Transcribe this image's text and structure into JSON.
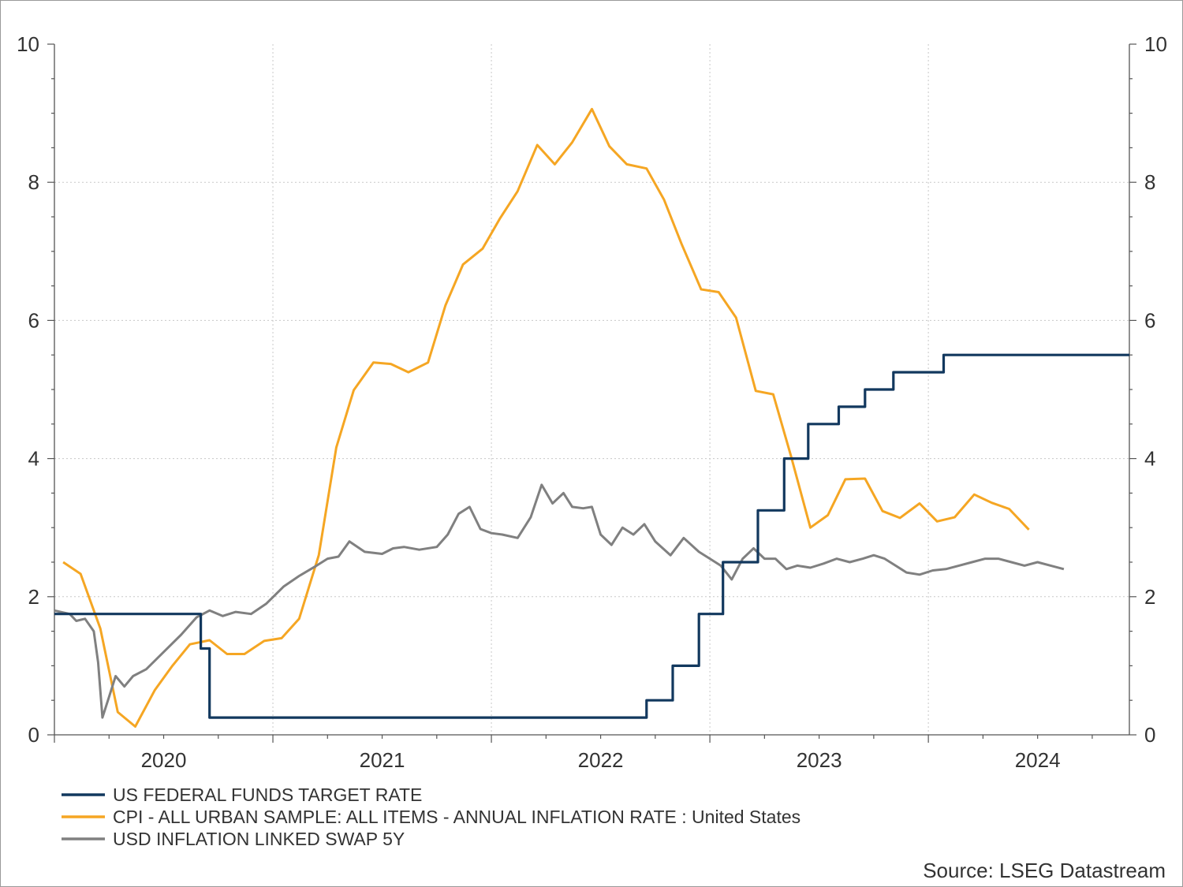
{
  "chart_data": {
    "type": "line",
    "title": "",
    "xlabel": "",
    "ylabel": "",
    "xlim": [
      2019.5,
      2024.42
    ],
    "ylim": [
      0,
      10
    ],
    "y_ticks": [
      0,
      2,
      4,
      6,
      8,
      10
    ],
    "y2_ticks": [
      0,
      2,
      4,
      6,
      8,
      10
    ],
    "x_year_labels": [
      "2020",
      "2021",
      "2022",
      "2023",
      "2024"
    ],
    "x_year_positions": [
      2020.0,
      2021.0,
      2022.0,
      2023.0,
      2024.0
    ],
    "grid": true,
    "legend_placement": "bottom-left",
    "source": "Source: LSEG Datastream",
    "series": [
      {
        "name": "US FEDERAL FUNDS TARGET RATE",
        "color": "#12385e",
        "step": true,
        "points": [
          [
            2019.5,
            1.75
          ],
          [
            2020.17,
            1.25
          ],
          [
            2020.21,
            0.25
          ],
          [
            2022.21,
            0.5
          ],
          [
            2022.33,
            1.0
          ],
          [
            2022.45,
            1.75
          ],
          [
            2022.56,
            2.5
          ],
          [
            2022.72,
            3.25
          ],
          [
            2022.84,
            4.0
          ],
          [
            2022.95,
            4.5
          ],
          [
            2023.09,
            4.75
          ],
          [
            2023.21,
            5.0
          ],
          [
            2023.34,
            5.25
          ],
          [
            2023.57,
            5.5
          ],
          [
            2024.42,
            5.5
          ]
        ]
      },
      {
        "name": "CPI - ALL URBAN SAMPLE: ALL ITEMS - ANNUAL INFLATION RATE : United States",
        "color": "#f5a623",
        "step": false,
        "points": [
          [
            2019.54,
            2.5
          ],
          [
            2019.62,
            2.33
          ],
          [
            2019.71,
            1.54
          ],
          [
            2019.79,
            0.33
          ],
          [
            2019.87,
            0.12
          ],
          [
            2019.96,
            0.65
          ],
          [
            2020.04,
            1.0
          ],
          [
            2020.12,
            1.31
          ],
          [
            2020.21,
            1.37
          ],
          [
            2020.29,
            1.17
          ],
          [
            2020.37,
            1.17
          ],
          [
            2020.46,
            1.36
          ],
          [
            2020.54,
            1.4
          ],
          [
            2020.62,
            1.68
          ],
          [
            2020.71,
            2.6
          ],
          [
            2020.79,
            4.16
          ],
          [
            2020.87,
            4.99
          ],
          [
            2020.96,
            5.39
          ],
          [
            2021.04,
            5.37
          ],
          [
            2021.12,
            5.25
          ],
          [
            2021.21,
            5.39
          ],
          [
            2021.29,
            6.22
          ],
          [
            2021.37,
            6.81
          ],
          [
            2021.46,
            7.04
          ],
          [
            2021.54,
            7.48
          ],
          [
            2021.62,
            7.87
          ],
          [
            2021.71,
            8.54
          ],
          [
            2021.79,
            8.26
          ],
          [
            2021.87,
            8.58
          ],
          [
            2021.96,
            9.06
          ],
          [
            2022.04,
            8.52
          ],
          [
            2022.12,
            8.26
          ],
          [
            2022.21,
            8.2
          ],
          [
            2022.29,
            7.75
          ],
          [
            2022.37,
            7.11
          ],
          [
            2022.46,
            6.45
          ],
          [
            2022.54,
            6.41
          ],
          [
            2022.62,
            6.04
          ],
          [
            2022.71,
            4.98
          ],
          [
            2022.79,
            4.93
          ],
          [
            2022.87,
            4.05
          ],
          [
            2022.96,
            3.0
          ],
          [
            2023.04,
            3.18
          ],
          [
            2023.12,
            3.7
          ],
          [
            2023.21,
            3.71
          ],
          [
            2023.29,
            3.24
          ],
          [
            2023.37,
            3.14
          ],
          [
            2023.46,
            3.35
          ],
          [
            2023.54,
            3.09
          ],
          [
            2023.62,
            3.15
          ],
          [
            2023.71,
            3.48
          ],
          [
            2023.79,
            3.36
          ],
          [
            2023.87,
            3.27
          ],
          [
            2023.96,
            2.97
          ]
        ]
      },
      {
        "name": "USD INFLATION LINKED SWAP 5Y",
        "color": "#808080",
        "step": false,
        "points": [
          [
            2019.5,
            1.8
          ],
          [
            2019.57,
            1.75
          ],
          [
            2019.6,
            1.65
          ],
          [
            2019.64,
            1.68
          ],
          [
            2019.68,
            1.5
          ],
          [
            2019.7,
            1.05
          ],
          [
            2019.72,
            0.25
          ],
          [
            2019.75,
            0.55
          ],
          [
            2019.78,
            0.85
          ],
          [
            2019.82,
            0.7
          ],
          [
            2019.86,
            0.85
          ],
          [
            2019.92,
            0.95
          ],
          [
            2020.0,
            1.2
          ],
          [
            2020.08,
            1.45
          ],
          [
            2020.15,
            1.7
          ],
          [
            2020.21,
            1.8
          ],
          [
            2020.27,
            1.72
          ],
          [
            2020.33,
            1.78
          ],
          [
            2020.4,
            1.75
          ],
          [
            2020.47,
            1.9
          ],
          [
            2020.55,
            2.15
          ],
          [
            2020.62,
            2.3
          ],
          [
            2020.7,
            2.45
          ],
          [
            2020.75,
            2.55
          ],
          [
            2020.8,
            2.58
          ],
          [
            2020.85,
            2.8
          ],
          [
            2020.92,
            2.65
          ],
          [
            2021.0,
            2.62
          ],
          [
            2021.05,
            2.7
          ],
          [
            2021.1,
            2.72
          ],
          [
            2021.17,
            2.68
          ],
          [
            2021.25,
            2.72
          ],
          [
            2021.3,
            2.9
          ],
          [
            2021.35,
            3.2
          ],
          [
            2021.4,
            3.3
          ],
          [
            2021.45,
            2.98
          ],
          [
            2021.5,
            2.92
          ],
          [
            2021.55,
            2.9
          ],
          [
            2021.62,
            2.85
          ],
          [
            2021.68,
            3.15
          ],
          [
            2021.73,
            3.62
          ],
          [
            2021.78,
            3.35
          ],
          [
            2021.83,
            3.5
          ],
          [
            2021.87,
            3.3
          ],
          [
            2021.92,
            3.28
          ],
          [
            2021.96,
            3.3
          ],
          [
            2022.0,
            2.9
          ],
          [
            2022.05,
            2.75
          ],
          [
            2022.1,
            3.0
          ],
          [
            2022.15,
            2.9
          ],
          [
            2022.2,
            3.05
          ],
          [
            2022.25,
            2.8
          ],
          [
            2022.32,
            2.6
          ],
          [
            2022.38,
            2.85
          ],
          [
            2022.45,
            2.65
          ],
          [
            2022.5,
            2.55
          ],
          [
            2022.55,
            2.45
          ],
          [
            2022.6,
            2.25
          ],
          [
            2022.65,
            2.55
          ],
          [
            2022.7,
            2.7
          ],
          [
            2022.75,
            2.55
          ],
          [
            2022.8,
            2.55
          ],
          [
            2022.85,
            2.4
          ],
          [
            2022.9,
            2.45
          ],
          [
            2022.96,
            2.42
          ],
          [
            2023.02,
            2.48
          ],
          [
            2023.08,
            2.55
          ],
          [
            2023.14,
            2.5
          ],
          [
            2023.2,
            2.55
          ],
          [
            2023.25,
            2.6
          ],
          [
            2023.3,
            2.55
          ],
          [
            2023.35,
            2.45
          ],
          [
            2023.4,
            2.35
          ],
          [
            2023.46,
            2.32
          ],
          [
            2023.52,
            2.38
          ],
          [
            2023.58,
            2.4
          ],
          [
            2023.64,
            2.45
          ],
          [
            2023.7,
            2.5
          ],
          [
            2023.76,
            2.55
          ],
          [
            2023.82,
            2.55
          ],
          [
            2023.88,
            2.5
          ],
          [
            2023.94,
            2.45
          ],
          [
            2024.0,
            2.5
          ],
          [
            2024.06,
            2.45
          ],
          [
            2024.12,
            2.4
          ]
        ]
      }
    ]
  }
}
